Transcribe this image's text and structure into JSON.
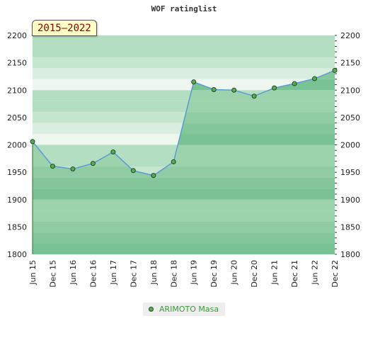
{
  "title": "WOF ratinglist",
  "period_badge": "2015—2022",
  "legend": {
    "label": "ARIMOTO Masa"
  },
  "colors": {
    "line": "#5b9bd5",
    "marker_fill": "#5aaa5a",
    "marker_stroke": "#1f4a1f",
    "area_dark": "#79c293",
    "area_light": "#9dd3ac",
    "background_dark": "#b3dec1",
    "background_light": "#edf7f0"
  },
  "chart_data": {
    "type": "line",
    "title": "WOF ratinglist",
    "xlabel": "",
    "ylabel": "",
    "ylim": [
      1800,
      2200
    ],
    "yticks": [
      1800,
      1850,
      1900,
      1950,
      2000,
      2050,
      2100,
      2150,
      2200
    ],
    "categories": [
      "Jun 15",
      "Dec 15",
      "Jun 16",
      "Dec 16",
      "Jun 17",
      "Dec 17",
      "Jun 18",
      "Dec 18",
      "Jun 19",
      "Dec 19",
      "Jun 20",
      "Dec 20",
      "Jun 21",
      "Dec 21",
      "Jun 22",
      "Dec 22"
    ],
    "series": [
      {
        "name": "ARIMOTO Masa",
        "values": [
          2006,
          1961,
          1956,
          1966,
          1987,
          1953,
          1944,
          1969,
          2115,
          2101,
          2100,
          2089,
          2104,
          2112,
          2121,
          2136
        ]
      }
    ],
    "grid": true,
    "legend_position": "bottom"
  }
}
